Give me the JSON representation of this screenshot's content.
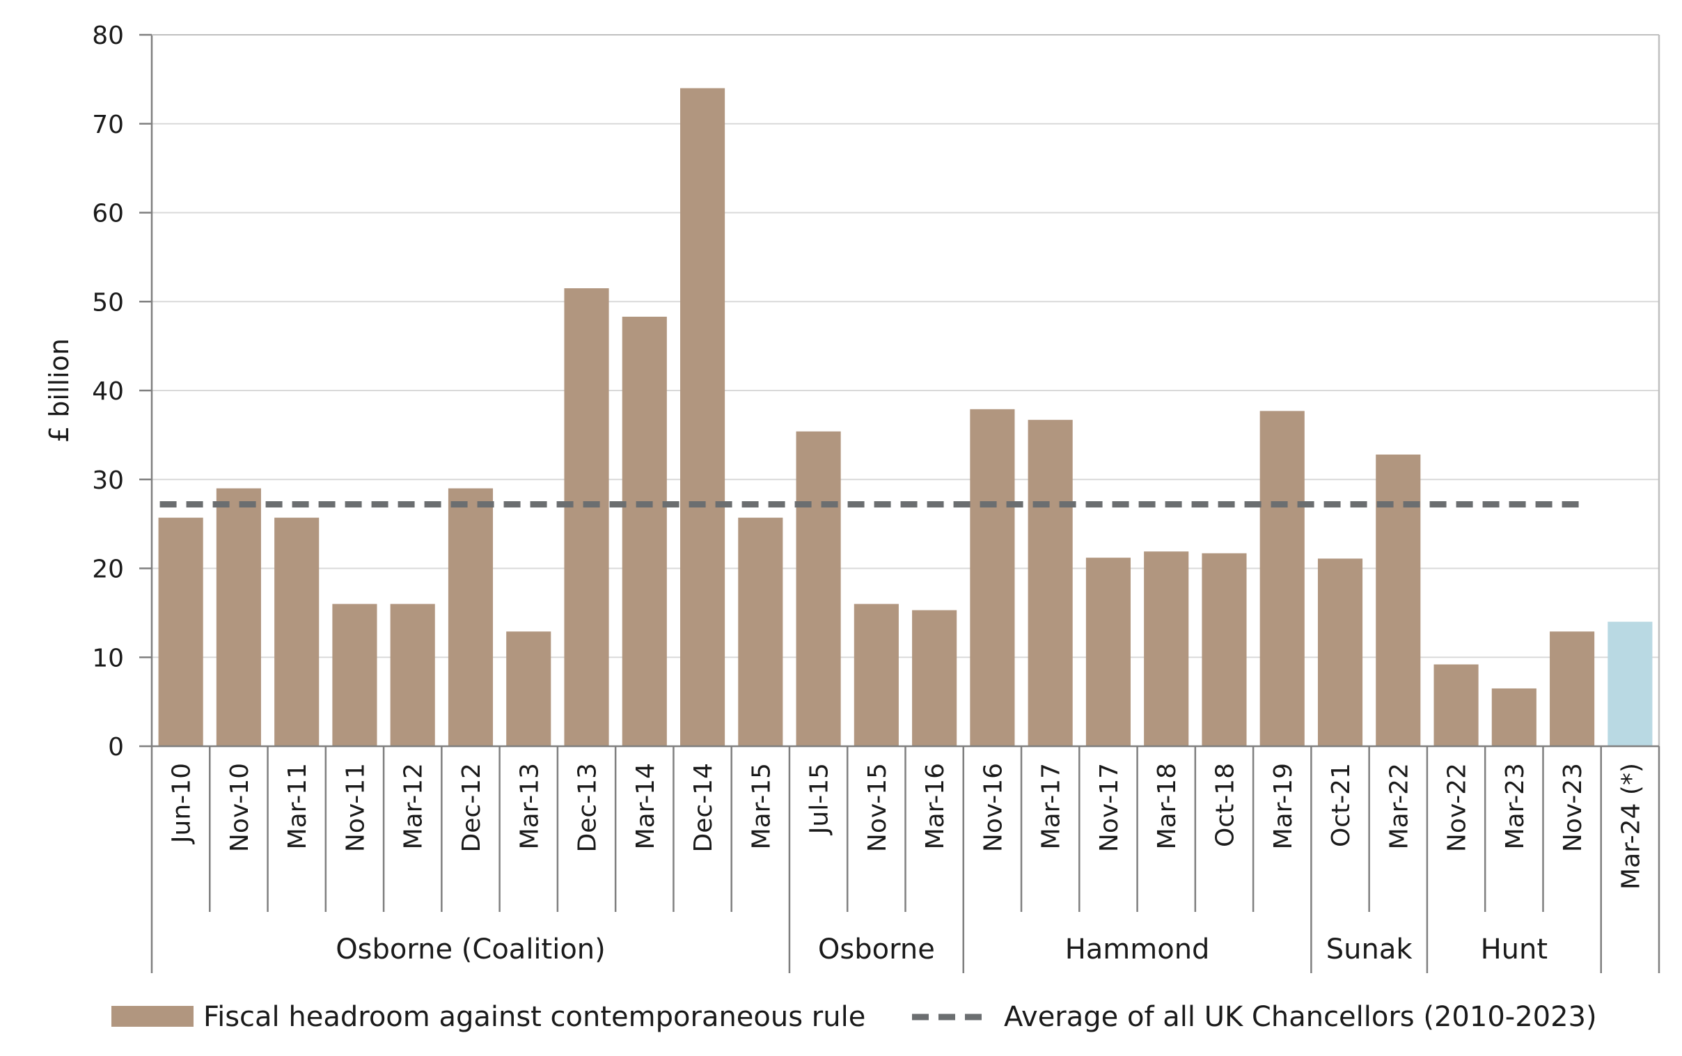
{
  "chart_data": {
    "type": "bar",
    "ylabel": "£ billion",
    "ylim": [
      0,
      80
    ],
    "yticks": [
      0,
      10,
      20,
      30,
      40,
      50,
      60,
      70,
      80
    ],
    "grid": true,
    "categories": [
      "Jun-10",
      "Nov-10",
      "Mar-11",
      "Nov-11",
      "Mar-12",
      "Dec-12",
      "Mar-13",
      "Dec-13",
      "Mar-14",
      "Dec-14",
      "Mar-15",
      "Jul-15",
      "Nov-15",
      "Mar-16",
      "Nov-16",
      "Mar-17",
      "Nov-17",
      "Mar-18",
      "Oct-18",
      "Mar-19",
      "Oct-21",
      "Mar-22",
      "Nov-22",
      "Mar-23",
      "Nov-23",
      "Mar-24 (*)"
    ],
    "values": [
      25.7,
      29.0,
      25.7,
      16.0,
      16.0,
      29.0,
      12.9,
      51.5,
      48.3,
      74.0,
      25.7,
      35.4,
      16.0,
      15.3,
      37.9,
      36.7,
      21.2,
      21.9,
      21.7,
      37.7,
      21.1,
      32.8,
      9.2,
      6.5,
      12.9,
      14.0
    ],
    "highlight_index": 25,
    "series": [
      {
        "name": "Fiscal headroom against contemporaneous rule",
        "type": "bar",
        "color": "#b1967f"
      },
      {
        "name": "Average of all UK Chancellors (2010-2023)",
        "type": "line",
        "style": "dashed",
        "color": "#6b6e70",
        "value": 27.2
      }
    ],
    "highlight_color": "#b9d9e3",
    "groups": [
      {
        "label": "Osborne (Coalition)",
        "start": 0,
        "end": 10
      },
      {
        "label": "Osborne",
        "start": 11,
        "end": 13
      },
      {
        "label": "Hammond",
        "start": 14,
        "end": 19
      },
      {
        "label": "Sunak",
        "start": 20,
        "end": 21
      },
      {
        "label": "Hunt",
        "start": 22,
        "end": 24
      }
    ],
    "legend_placement": "bottom"
  }
}
